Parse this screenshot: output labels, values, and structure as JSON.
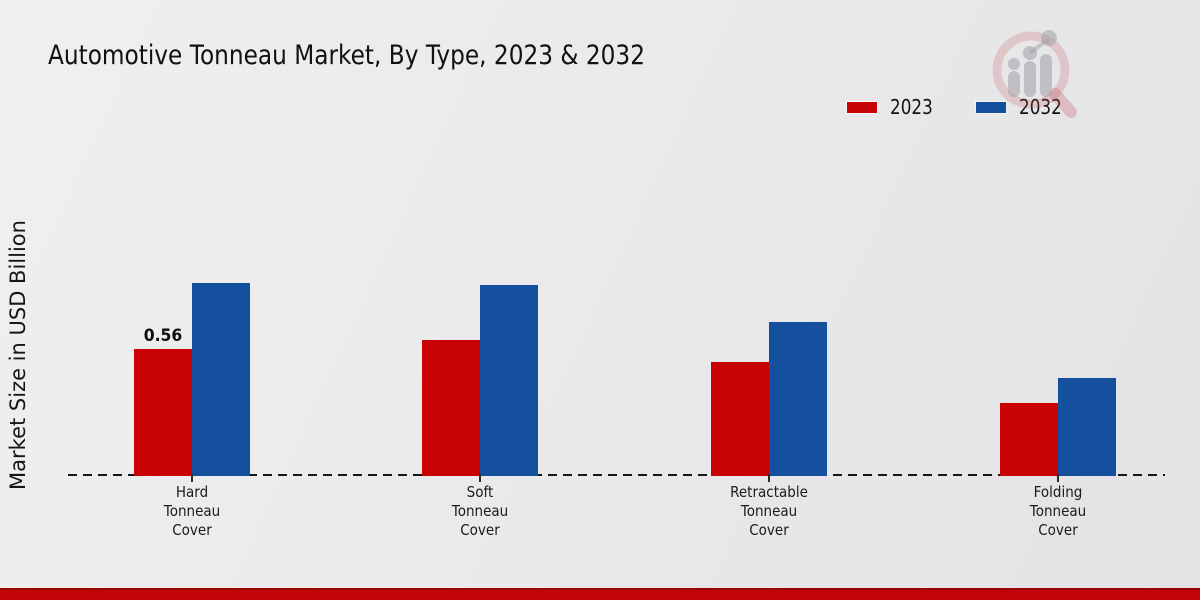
{
  "page": {
    "title": "Automotive Tonneau Market, By Type, 2023 & 2032",
    "ylabel": "Market Size in USD Billion"
  },
  "colors": {
    "series_2023": "#c80306",
    "series_2032": "#14509e",
    "background": "#e8e8ea",
    "baseline": "#161616",
    "footer_bar": "#c10405",
    "footer_bar_top_line": "#9b0203",
    "text": "#141414"
  },
  "icons": {
    "logo": "magnifier-bar-chart-watermark"
  },
  "legend": {
    "items": [
      {
        "label": "2023",
        "color": "#c80306"
      },
      {
        "label": "2032",
        "color": "#14509e"
      }
    ]
  },
  "chart_data": {
    "type": "bar",
    "title": "Automotive Tonneau Market, By Type, 2023 & 2032",
    "xlabel": "",
    "ylabel": "Market Size in USD Billion",
    "categories": [
      "Hard Tonneau Cover",
      "Soft Tonneau Cover",
      "Retractable Tonneau Cover",
      "Folding Tonneau Cover"
    ],
    "categories_multiline": [
      "Hard\nTonneau\nCover",
      "Soft\nTonneau\nCover",
      "Retractable\nTonneau\nCover",
      "Folding\nTonneau\nCover"
    ],
    "series": [
      {
        "name": "2023",
        "color": "#c80306",
        "values": [
          0.56,
          0.6,
          0.5,
          0.32
        ]
      },
      {
        "name": "2032",
        "color": "#14509e",
        "values": [
          0.85,
          0.84,
          0.68,
          0.43
        ]
      }
    ],
    "data_labels": [
      {
        "series": "2023",
        "category": "Hard Tonneau Cover",
        "text": "0.56"
      }
    ],
    "ylim": [
      0,
      1.0
    ],
    "grid": false,
    "axis_style": "dashed-baseline-only, no y ticks",
    "legend_position": "top-right"
  }
}
